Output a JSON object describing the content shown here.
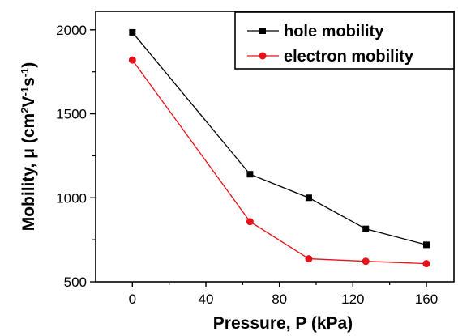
{
  "chart_data": {
    "type": "line",
    "title": "",
    "xlabel": "Pressure, P (kPa)",
    "ylabel": {
      "prefix": "Mobility, μ (cm",
      "sup1": "2",
      "mid1": "V",
      "sup2": "-1",
      "mid2": "s",
      "sup3": "-1",
      "suffix": ")"
    },
    "xlim": [
      -20,
      175
    ],
    "ylim": [
      500,
      2110
    ],
    "x_ticks": [
      0,
      40,
      80,
      120,
      160
    ],
    "y_ticks": [
      500,
      1000,
      1500,
      2000
    ],
    "grid": false,
    "legend_position": "top-right",
    "series": [
      {
        "name": "hole mobility",
        "color": "#000000",
        "marker": "square",
        "x": [
          0,
          64,
          96,
          127,
          160
        ],
        "y": [
          1985,
          1140,
          1000,
          815,
          720
        ]
      },
      {
        "name": "electron mobility",
        "color": "#e8111a",
        "marker": "circle",
        "x": [
          0,
          64,
          96,
          127,
          160
        ],
        "y": [
          1820,
          858,
          637,
          622,
          608
        ]
      }
    ]
  }
}
